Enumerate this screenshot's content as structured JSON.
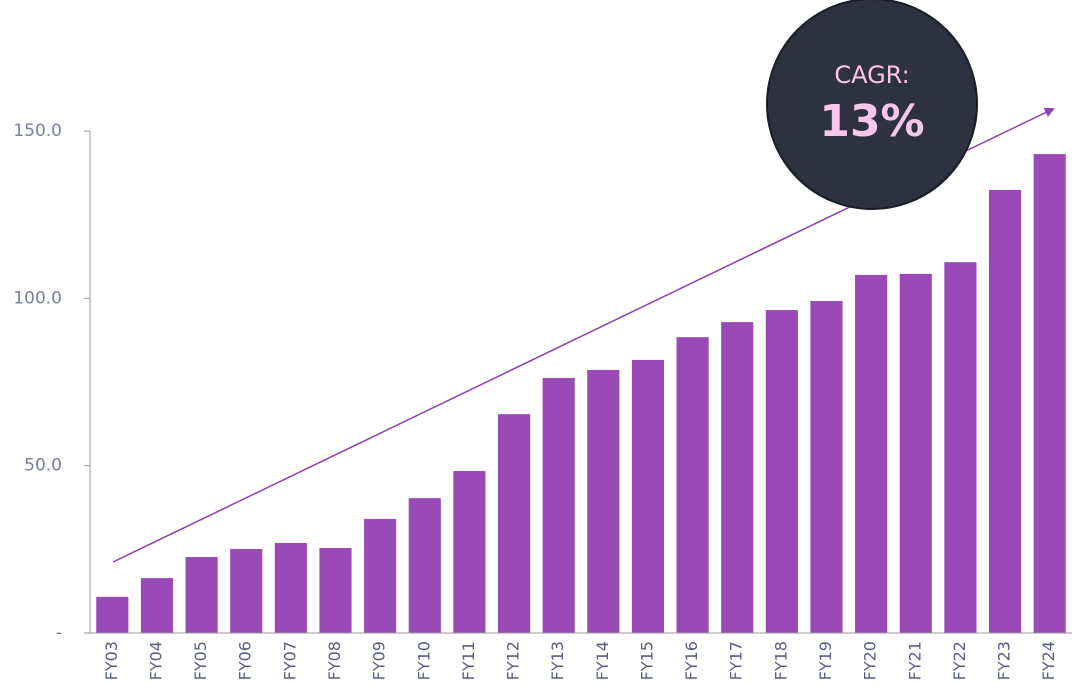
{
  "chart_data": {
    "type": "bar",
    "categories": [
      "FY03",
      "FY04",
      "FY05",
      "FY06",
      "FY07",
      "FY08",
      "FY09",
      "FY10",
      "FY11",
      "FY12",
      "FY13",
      "FY14",
      "FY15",
      "FY16",
      "FY17",
      "FY18",
      "FY19",
      "FY20",
      "FY21",
      "FY22",
      "FY23",
      "FY24"
    ],
    "values": [
      10.8,
      16.4,
      22.7,
      25.1,
      26.9,
      25.4,
      34.1,
      40.3,
      48.4,
      65.4,
      76.2,
      78.6,
      81.6,
      88.4,
      92.9,
      96.5,
      99.2,
      107.0,
      107.3,
      110.8,
      132.4,
      143.1
    ],
    "color": "#9a4ab6",
    "ylim": [
      0,
      150
    ],
    "yticks": [
      {
        "value": 0,
        "label": "-"
      },
      {
        "value": 50,
        "label": "50.0"
      },
      {
        "value": 100,
        "label": "100.0"
      },
      {
        "value": 150,
        "label": "150.0"
      }
    ],
    "annotations": [
      "CAGR:",
      "13%"
    ]
  }
}
